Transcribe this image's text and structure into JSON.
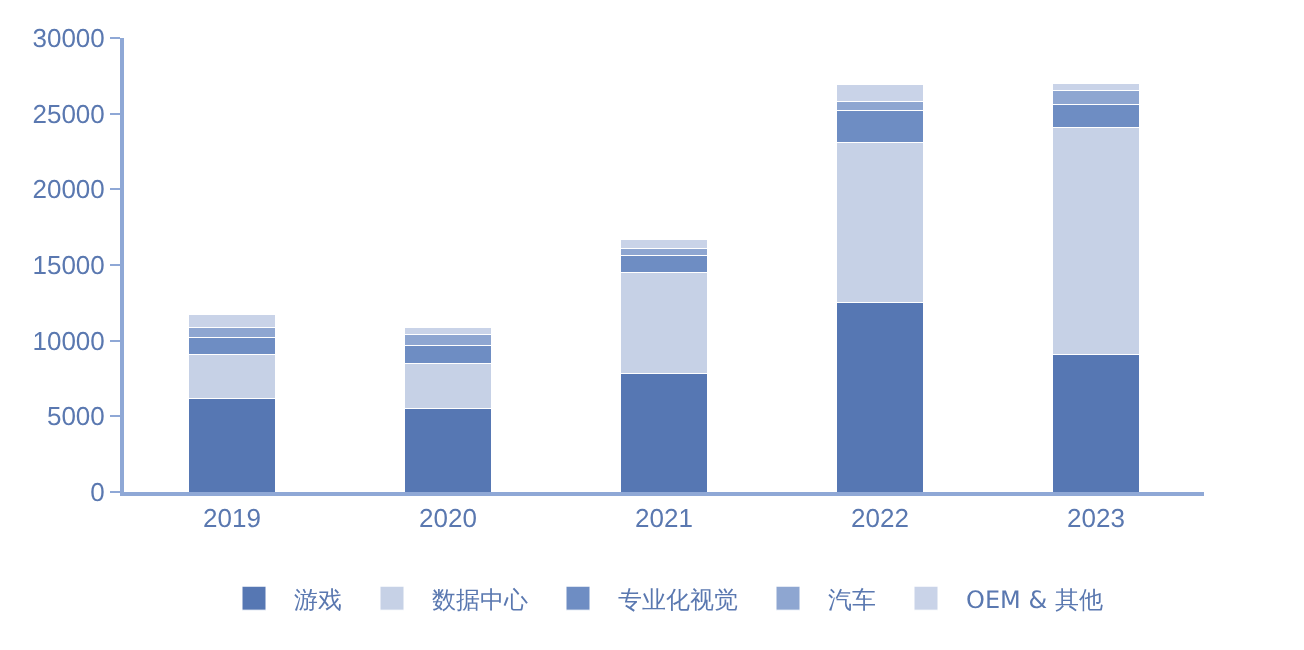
{
  "chart_data": {
    "type": "bar",
    "stacked": true,
    "categories": [
      "2019",
      "2020",
      "2021",
      "2022",
      "2023"
    ],
    "series": [
      {
        "name": "游戏",
        "color": "#5677b3",
        "values": [
          6200,
          5500,
          7800,
          12500,
          9100
        ]
      },
      {
        "name": "数据中心",
        "color": "#c6d1e6",
        "values": [
          2900,
          3000,
          6700,
          10600,
          15000
        ]
      },
      {
        "name": "专业化视觉",
        "color": "#6e8dc3",
        "values": [
          1100,
          1200,
          1100,
          2100,
          1500
        ]
      },
      {
        "name": "汽车",
        "color": "#8ea6d1",
        "values": [
          700,
          700,
          500,
          600,
          900
        ]
      },
      {
        "name": "OEM & 其他",
        "color": "#c9d3e8",
        "values": [
          800,
          500,
          600,
          1100,
          500
        ]
      }
    ],
    "ylim": [
      0,
      30000
    ],
    "yticks": [
      0,
      5000,
      10000,
      15000,
      20000,
      25000,
      30000
    ],
    "legend": "bottom"
  }
}
